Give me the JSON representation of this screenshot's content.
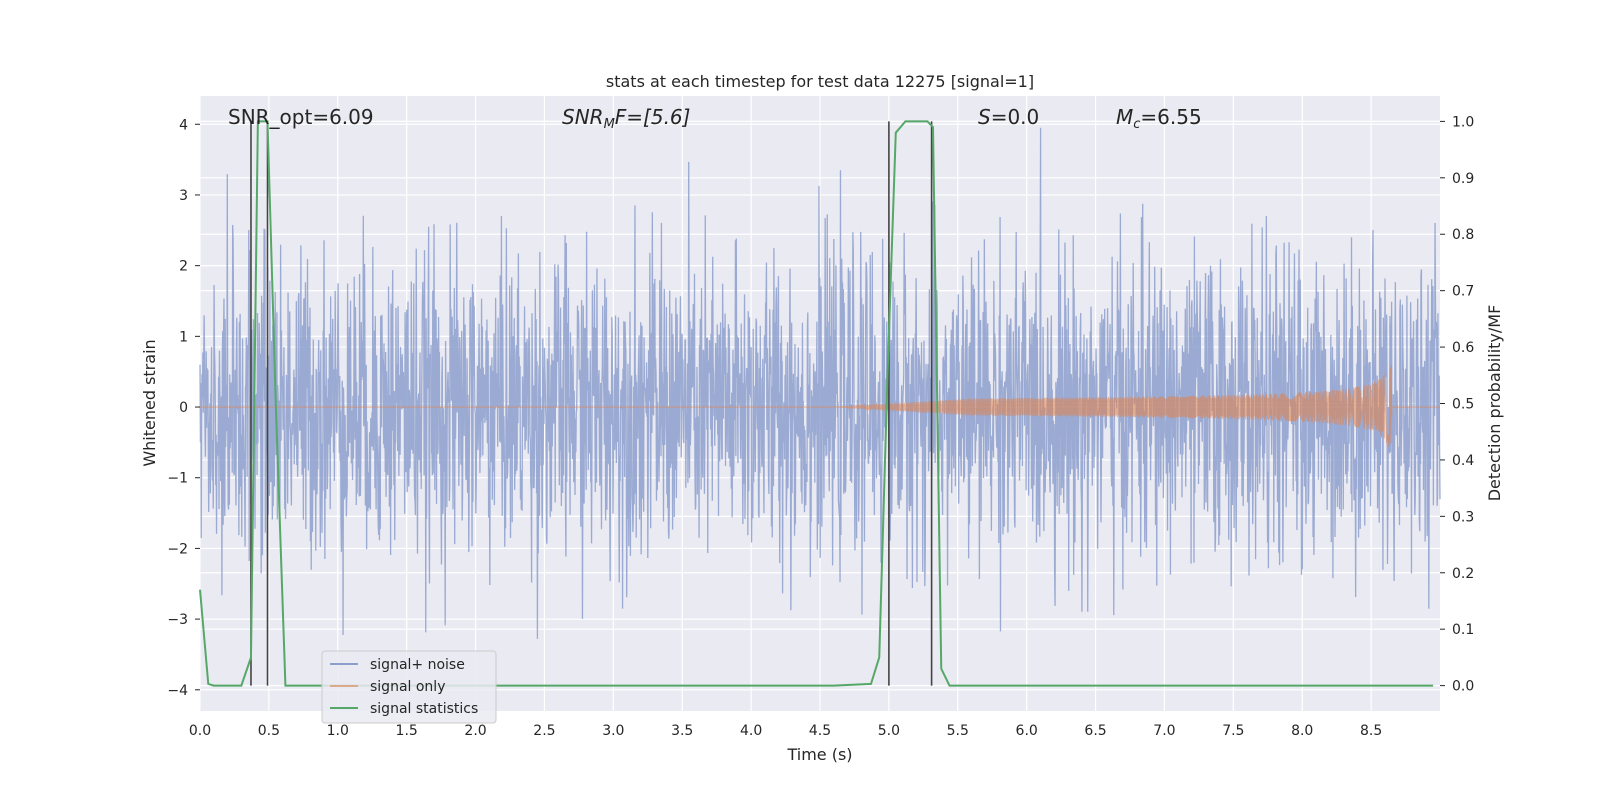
{
  "chart_data": {
    "type": "line",
    "title": "stats at each timestep for test data 12275 [signal=1]",
    "xlabel": "Time (s)",
    "ylabel": "Whitened strain",
    "y2label": "Detection probability/MF",
    "xlim": [
      0.0,
      9.0
    ],
    "ylim": [
      -4.3,
      4.4
    ],
    "y2lim": [
      -0.045,
      1.045
    ],
    "xticks": [
      "0.0",
      "0.5",
      "1.0",
      "1.5",
      "2.0",
      "2.5",
      "3.0",
      "3.5",
      "4.0",
      "4.5",
      "5.0",
      "5.5",
      "6.0",
      "6.5",
      "7.0",
      "7.5",
      "8.0",
      "8.5"
    ],
    "yticks": [
      "4",
      "3",
      "2",
      "1",
      "0",
      "−1",
      "−2",
      "−3",
      "−4"
    ],
    "y2ticks": [
      "1.0",
      "0.9",
      "0.8",
      "0.7",
      "0.6",
      "0.5",
      "0.4",
      "0.3",
      "0.2",
      "0.1",
      "0.0"
    ],
    "grid": true,
    "legend_position": "lower-left",
    "annotations": {
      "snr_opt": "SNR_opt=6.09",
      "snr_mf_base": "SNR",
      "snr_mf_sub": "M",
      "snr_mf_rest": "F=[5.6]",
      "s_var": "S",
      "s_rest": "=0.0",
      "mc_var": "M",
      "mc_sub": "c",
      "mc_rest": "=6.55"
    },
    "series": [
      {
        "name": "signal+ noise",
        "color": "#8c9fcc",
        "description_values": "white noise, std ≈ 1.0, peaks ≈ ±3.5"
      },
      {
        "name": "signal only",
        "color": "#dd8452",
        "chirp_start": 4.6,
        "chirp_end": 8.65,
        "max_amplitude": 0.72
      },
      {
        "name": "signal statistics",
        "color": "#55a868",
        "x": [
          0.0,
          0.06,
          0.1,
          0.2,
          0.3,
          0.37,
          0.42,
          0.45,
          0.49,
          0.55,
          0.62,
          0.7,
          1.0,
          2.0,
          3.0,
          4.0,
          4.6,
          4.87,
          4.93,
          4.99,
          5.05,
          5.12,
          5.2,
          5.28,
          5.32,
          5.38,
          5.44,
          5.5,
          6.0,
          7.0,
          8.0,
          8.95
        ],
        "y": [
          0.17,
          0.003,
          0.0,
          0.0,
          0.0,
          0.05,
          1.0,
          1.0,
          1.0,
          0.5,
          0.0,
          0.0,
          0.0,
          0.0,
          0.0,
          0.0,
          0.0,
          0.003,
          0.05,
          0.55,
          0.98,
          1.0,
          1.0,
          1.0,
          0.99,
          0.03,
          0.0,
          0.0,
          0.0,
          0.0,
          0.0,
          0.0
        ]
      }
    ],
    "vertical_markers": [
      0.37,
      0.49,
      5.0,
      5.31
    ]
  },
  "colors": {
    "axes_bg": "#eaeaf2",
    "grid": "#ffffff",
    "noise": "#8c9fcc",
    "signal": "#dd8452",
    "stats": "#55a868",
    "marker": "#444444"
  }
}
